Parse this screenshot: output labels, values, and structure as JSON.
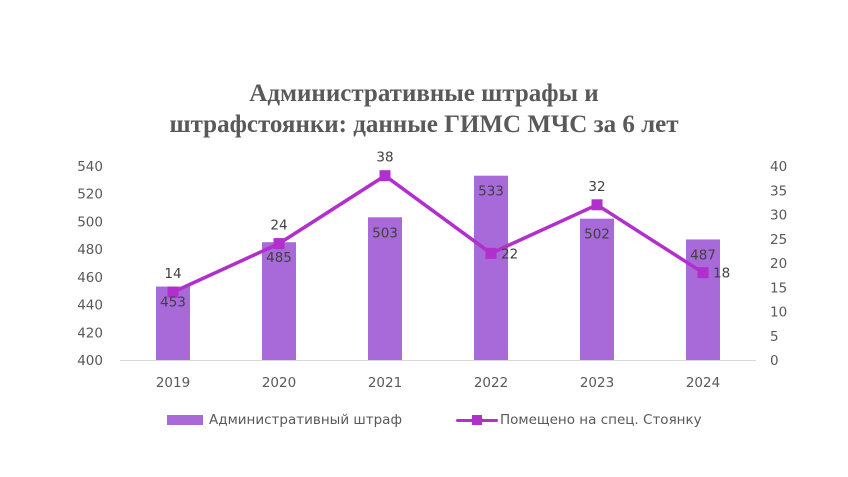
{
  "chart_data": {
    "type": "bar+line",
    "title": "Административные штрафы и штрафстоянки: данные ГИМС МЧС за 6 лет",
    "title_lines": [
      "Административные штрафы и",
      "штрафстоянки: данные ГИМС МЧС за 6 лет"
    ],
    "categories": [
      "2019",
      "2020",
      "2021",
      "2022",
      "2023",
      "2024"
    ],
    "series": [
      {
        "name": "Административный штраф",
        "type": "bar",
        "axis": "left",
        "color": "#a86ad8",
        "values": [
          453,
          485,
          503,
          533,
          502,
          487
        ]
      },
      {
        "name": "Помещено на спец. Стоянку",
        "type": "line",
        "axis": "right",
        "color": "#b12fcc",
        "values": [
          14,
          24,
          38,
          22,
          32,
          18
        ]
      }
    ],
    "y_left": {
      "min": 400,
      "max": 540,
      "ticks": [
        "400",
        "420",
        "440",
        "460",
        "480",
        "500",
        "520",
        "540"
      ]
    },
    "y_right": {
      "min": 0,
      "max": 40,
      "ticks": [
        "0",
        "5",
        "10",
        "15",
        "20",
        "25",
        "30",
        "35",
        "40"
      ]
    },
    "xlabel": "",
    "ylabel": "",
    "grid": false,
    "legend_position": "bottom"
  },
  "legend": {
    "bar_label": "Административный штраф",
    "line_label": "Помещено на спец. Стоянку"
  }
}
